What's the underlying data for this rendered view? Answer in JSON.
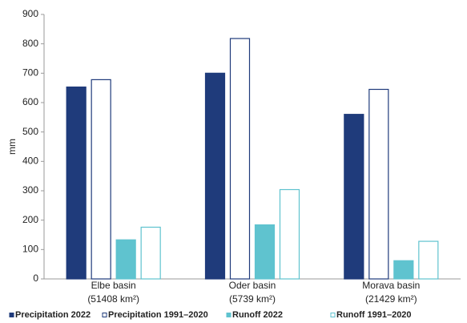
{
  "chart_data": {
    "type": "bar",
    "y_label": "mm",
    "categories": [
      "Elbe basin\n(51408 km²)",
      "Oder basin\n(5739 km²)",
      "Morava basin\n(21429 km²)"
    ],
    "series": [
      {
        "name": "Precipitation 2022",
        "color": "#1f3b7b",
        "filled": true,
        "values": [
          653,
          700,
          560
        ]
      },
      {
        "name": "Precipitation 1991–2020",
        "color": "#1f3b7b",
        "filled": false,
        "values": [
          678,
          818,
          645
        ]
      },
      {
        "name": "Runoff 2022",
        "color": "#5fc3cf",
        "filled": true,
        "values": [
          133,
          184,
          62
        ]
      },
      {
        "name": "Runoff 1991–2020",
        "color": "#5fc3cf",
        "filled": false,
        "values": [
          176,
          304,
          128
        ]
      }
    ],
    "ylim": [
      0,
      900
    ],
    "yticks": [
      0,
      100,
      200,
      300,
      400,
      500,
      600,
      700,
      800,
      900
    ],
    "legend": "bottom"
  }
}
